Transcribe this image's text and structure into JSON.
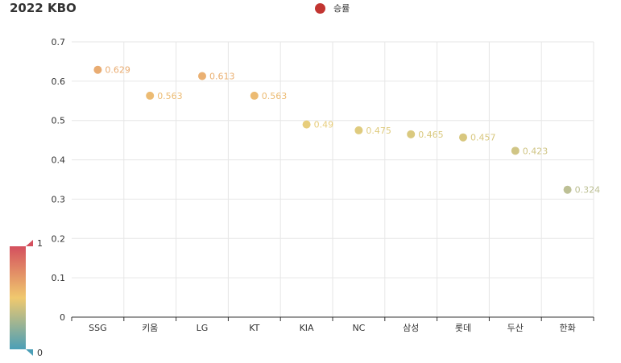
{
  "title": "2022 KBO",
  "colors": {
    "legend_marker": "#c23531",
    "grid": "#e6e6e6",
    "axis": "#333333",
    "visual_map_low": "#4b9fb7",
    "visual_map_mid": "#f0c96e",
    "visual_map_high": "#d4505e"
  },
  "visual_map": {
    "max_label": "1",
    "min_label": "0",
    "min": 0,
    "max": 1
  },
  "chart_data": {
    "type": "scatter",
    "title": "2022 KBO",
    "xlabel": "",
    "ylabel": "",
    "categories": [
      "SSG",
      "키움",
      "LG",
      "KT",
      "KIA",
      "NC",
      "삼성",
      "롯데",
      "두산",
      "한화"
    ],
    "series": [
      {
        "name": "승률",
        "values": [
          0.629,
          0.563,
          0.613,
          0.563,
          0.49,
          0.475,
          0.465,
          0.457,
          0.423,
          0.324
        ],
        "labels": [
          "0.629",
          "0.563",
          "0.613",
          "0.563",
          "0.49",
          "0.475",
          "0.465",
          "0.457",
          "0.423",
          "0.324"
        ],
        "point_colors": [
          "#e9ac72",
          "#ecbb73",
          "#eab072",
          "#ecbb73",
          "#e7cd7c",
          "#dfcb7e",
          "#dac97f",
          "#d8c77f",
          "#d0c585",
          "#bdc095"
        ]
      }
    ],
    "ylim": [
      0,
      0.7
    ],
    "yticks": [
      "0",
      "0.1",
      "0.2",
      "0.3",
      "0.4",
      "0.5",
      "0.6",
      "0.7"
    ],
    "grid": true,
    "legend_position": "top-center"
  }
}
